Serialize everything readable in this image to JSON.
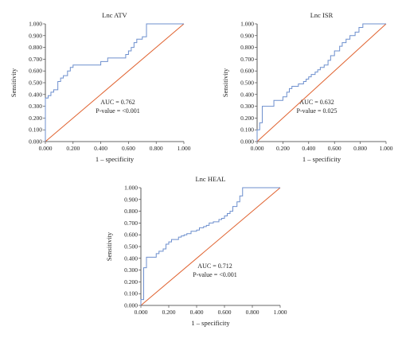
{
  "chart_data": [
    {
      "type": "line",
      "title": "Lnc ATV",
      "xlabel": "1 – specificity",
      "ylabel": "Sensitivity",
      "xlim": [
        0,
        1
      ],
      "ylim": [
        0,
        1
      ],
      "x_ticks": [
        "0.000",
        "0.200",
        "0.400",
        "0.600",
        "0.800",
        "1.000"
      ],
      "y_ticks": [
        "0.000",
        "0.100",
        "0.200",
        "0.300",
        "0.400",
        "0.500",
        "0.600",
        "0.700",
        "0.800",
        "0.900",
        "1.000"
      ],
      "annotation": [
        "AUC = 0.762",
        "P-value = <0.001"
      ],
      "grid": false,
      "series": [
        {
          "color": "#6d8fce",
          "x": [
            0.0,
            0.0,
            0.02,
            0.02,
            0.04,
            0.04,
            0.06,
            0.06,
            0.09,
            0.09,
            0.11,
            0.11,
            0.13,
            0.13,
            0.16,
            0.16,
            0.18,
            0.18,
            0.2,
            0.2,
            0.4,
            0.4,
            0.45,
            0.45,
            0.58,
            0.58,
            0.6,
            0.6,
            0.62,
            0.62,
            0.64,
            0.64,
            0.66,
            0.66,
            0.7,
            0.7,
            0.73,
            0.73,
            1.0
          ],
          "y": [
            0.0,
            0.37,
            0.37,
            0.39,
            0.39,
            0.42,
            0.42,
            0.44,
            0.44,
            0.51,
            0.51,
            0.54,
            0.54,
            0.56,
            0.56,
            0.6,
            0.6,
            0.63,
            0.63,
            0.65,
            0.65,
            0.68,
            0.68,
            0.71,
            0.71,
            0.74,
            0.74,
            0.77,
            0.77,
            0.8,
            0.8,
            0.84,
            0.84,
            0.87,
            0.87,
            0.89,
            0.89,
            1.0,
            1.0
          ]
        },
        {
          "color": "#e0622f",
          "x": [
            0,
            1
          ],
          "y": [
            0,
            1
          ]
        }
      ]
    },
    {
      "type": "line",
      "title": "Lnc ISR",
      "xlabel": "1 – specificity",
      "ylabel": "Sensitivity",
      "xlim": [
        0,
        1
      ],
      "ylim": [
        0,
        1
      ],
      "x_ticks": [
        "0.000",
        "0.200",
        "0.400",
        "0.600",
        "0.800",
        "1.000"
      ],
      "y_ticks": [
        "0.000",
        "0.100",
        "0.200",
        "0.300",
        "0.400",
        "0.500",
        "0.600",
        "0.700",
        "0.800",
        "0.900",
        "1.000"
      ],
      "annotation": [
        "AUC = 0.632",
        "P-value = 0.025"
      ],
      "grid": false,
      "series": [
        {
          "color": "#6d8fce",
          "x": [
            0.0,
            0.0,
            0.02,
            0.02,
            0.04,
            0.04,
            0.13,
            0.13,
            0.2,
            0.2,
            0.23,
            0.23,
            0.25,
            0.25,
            0.27,
            0.27,
            0.32,
            0.32,
            0.36,
            0.36,
            0.38,
            0.38,
            0.4,
            0.4,
            0.42,
            0.42,
            0.45,
            0.45,
            0.47,
            0.47,
            0.49,
            0.49,
            0.52,
            0.52,
            0.55,
            0.55,
            0.57,
            0.57,
            0.6,
            0.6,
            0.64,
            0.64,
            0.66,
            0.66,
            0.69,
            0.69,
            0.72,
            0.72,
            0.76,
            0.76,
            0.79,
            0.79,
            0.82,
            0.82,
            1.0
          ],
          "y": [
            0.0,
            0.1,
            0.1,
            0.16,
            0.16,
            0.3,
            0.3,
            0.35,
            0.35,
            0.38,
            0.38,
            0.42,
            0.42,
            0.45,
            0.45,
            0.47,
            0.47,
            0.49,
            0.49,
            0.51,
            0.51,
            0.53,
            0.53,
            0.55,
            0.55,
            0.57,
            0.57,
            0.59,
            0.59,
            0.61,
            0.61,
            0.63,
            0.63,
            0.65,
            0.65,
            0.69,
            0.69,
            0.73,
            0.73,
            0.77,
            0.77,
            0.81,
            0.81,
            0.84,
            0.84,
            0.87,
            0.87,
            0.9,
            0.9,
            0.93,
            0.93,
            0.97,
            0.97,
            1.0,
            1.0
          ]
        },
        {
          "color": "#e0622f",
          "x": [
            0,
            1
          ],
          "y": [
            0,
            1
          ]
        }
      ]
    },
    {
      "type": "line",
      "title": "Lnc HEAL",
      "xlabel": "1 – specificity",
      "ylabel": "Sensitivity",
      "xlim": [
        0,
        1
      ],
      "ylim": [
        0,
        1
      ],
      "x_ticks": [
        "0.000",
        "0.200",
        "0.400",
        "0.600",
        "0.800",
        "1.000"
      ],
      "y_ticks": [
        "0.000",
        "0.100",
        "0.200",
        "0.300",
        "0.400",
        "0.500",
        "0.600",
        "0.700",
        "0.800",
        "0.900",
        "1.000"
      ],
      "annotation": [
        "AUC = 0.712",
        "P-value = <0.001"
      ],
      "grid": false,
      "series": [
        {
          "color": "#6d8fce",
          "x": [
            0.0,
            0.0,
            0.02,
            0.02,
            0.04,
            0.04,
            0.11,
            0.11,
            0.13,
            0.13,
            0.16,
            0.16,
            0.18,
            0.18,
            0.2,
            0.2,
            0.22,
            0.22,
            0.27,
            0.27,
            0.29,
            0.29,
            0.31,
            0.31,
            0.33,
            0.33,
            0.36,
            0.36,
            0.4,
            0.4,
            0.42,
            0.42,
            0.45,
            0.45,
            0.47,
            0.47,
            0.49,
            0.49,
            0.52,
            0.52,
            0.56,
            0.56,
            0.58,
            0.58,
            0.6,
            0.6,
            0.62,
            0.62,
            0.64,
            0.64,
            0.66,
            0.66,
            0.69,
            0.69,
            0.71,
            0.71,
            0.73,
            0.73,
            1.0
          ],
          "y": [
            0.0,
            0.05,
            0.05,
            0.32,
            0.32,
            0.41,
            0.41,
            0.44,
            0.44,
            0.46,
            0.46,
            0.48,
            0.48,
            0.52,
            0.52,
            0.54,
            0.54,
            0.56,
            0.56,
            0.58,
            0.58,
            0.59,
            0.59,
            0.6,
            0.6,
            0.61,
            0.61,
            0.63,
            0.63,
            0.64,
            0.64,
            0.66,
            0.66,
            0.67,
            0.67,
            0.68,
            0.68,
            0.7,
            0.7,
            0.71,
            0.71,
            0.73,
            0.73,
            0.74,
            0.74,
            0.76,
            0.76,
            0.78,
            0.78,
            0.8,
            0.8,
            0.84,
            0.84,
            0.88,
            0.88,
            0.93,
            0.93,
            1.0,
            1.0
          ]
        },
        {
          "color": "#e0622f",
          "x": [
            0,
            1
          ],
          "y": [
            0,
            1
          ]
        }
      ]
    }
  ]
}
